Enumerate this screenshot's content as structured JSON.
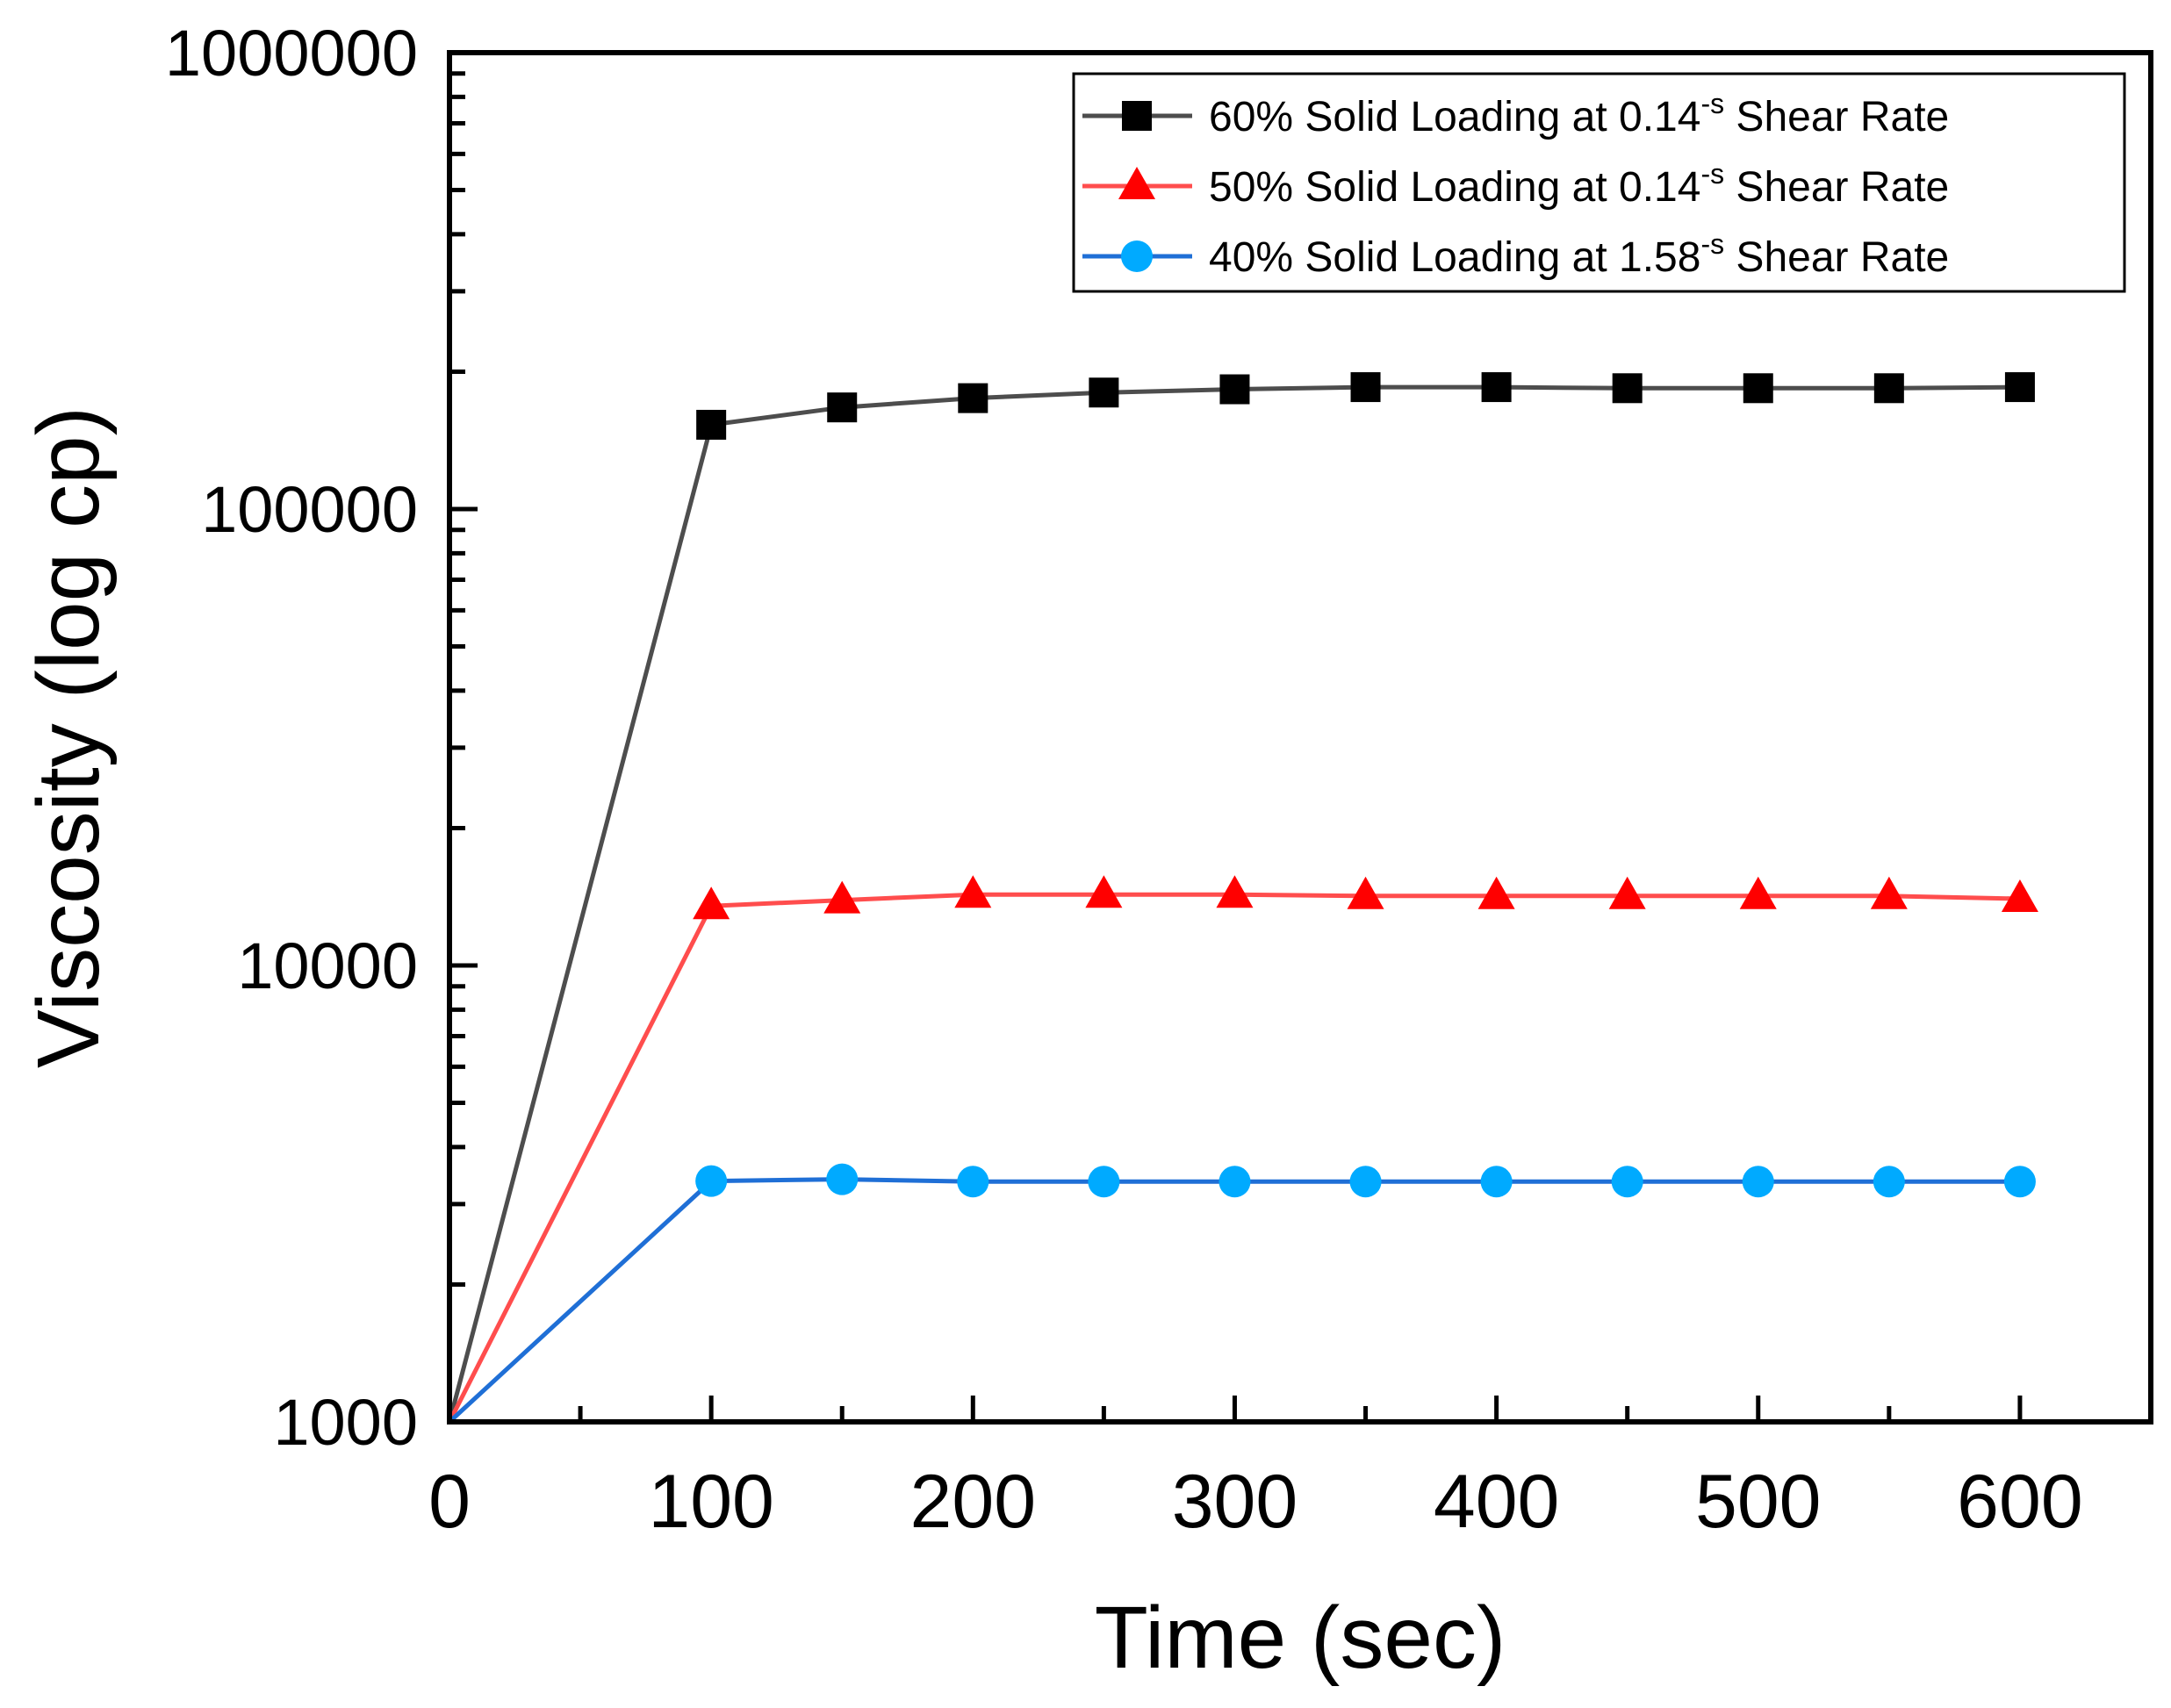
{
  "chart_data": {
    "type": "line",
    "xlabel": "Time (sec)",
    "ylabel": "Viscosity (log cp)",
    "x_scale": "linear",
    "y_scale": "log",
    "xlim": [
      0,
      650
    ],
    "ylim": [
      1000,
      1000000
    ],
    "x_ticks": [
      0,
      100,
      200,
      300,
      400,
      500,
      600
    ],
    "x_tick_labels": [
      "0",
      "100",
      "200",
      "300",
      "400",
      "500",
      "600"
    ],
    "y_ticks": [
      1000,
      10000,
      100000,
      1000000
    ],
    "y_tick_labels": [
      "1000",
      "10000",
      "100000",
      "1000000"
    ],
    "grid": false,
    "legend_position": "top-right",
    "x": [
      0,
      100,
      150,
      200,
      250,
      300,
      350,
      400,
      450,
      500,
      550,
      600
    ],
    "series": [
      {
        "legend_main": "60% Solid Loading at 0.14",
        "legend_sup": "-s",
        "legend_tail": " Shear Rate",
        "color": "#000000",
        "line_color": "#4d4d4d",
        "marker": "square",
        "values": [
          1000,
          153000,
          167000,
          175000,
          180000,
          183000,
          185000,
          185000,
          184000,
          184000,
          184000,
          185000
        ]
      },
      {
        "legend_main": "50% Solid Loading at 0.14",
        "legend_sup": "-s",
        "legend_tail": " Shear Rate",
        "color": "#ff0000",
        "line_color": "#ff4d4d",
        "marker": "triangle",
        "values": [
          1000,
          13500,
          13900,
          14300,
          14300,
          14300,
          14200,
          14200,
          14200,
          14200,
          14200,
          14000
        ]
      },
      {
        "legend_main": "40% Solid Loading at 1.58",
        "legend_sup": "-s",
        "legend_tail": " Shear Rate",
        "color": "#00aaff",
        "line_color": "#1f6fd6",
        "marker": "circle",
        "values": [
          1000,
          3370,
          3400,
          3360,
          3360,
          3360,
          3360,
          3360,
          3360,
          3360,
          3360,
          3360
        ]
      }
    ]
  }
}
